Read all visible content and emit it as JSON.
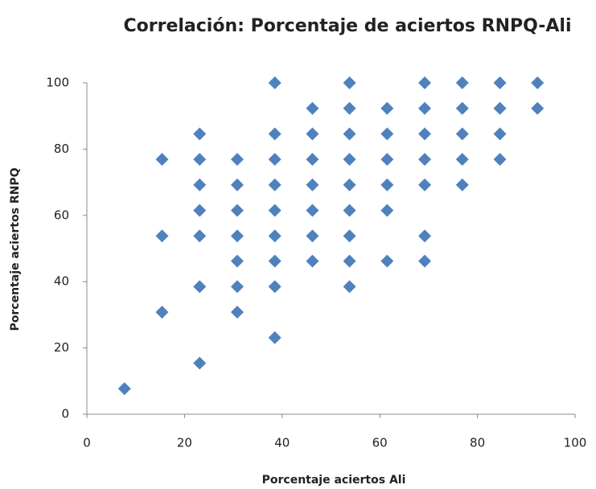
{
  "chart_data": {
    "type": "scatter",
    "title": "Correlación: Porcentaje de aciertos RNPQ-Ali",
    "x_label": "Porcentaje aciertos Ali",
    "y_label": "Porcentaje aciertos RNPQ",
    "xlim": [
      0,
      100
    ],
    "xticks": [
      0,
      20,
      40,
      60,
      80,
      100
    ],
    "ylim": [
      0,
      100
    ],
    "yticks": [
      0,
      20,
      40,
      60,
      80,
      100
    ],
    "grid": false,
    "series": [
      {
        "color": "#4f81bd",
        "x": [
          7.7,
          15.4,
          15.4,
          15.4,
          23.1,
          23.1,
          23.1,
          23.1,
          23.1,
          23.1,
          23.1,
          30.8,
          30.8,
          30.8,
          30.8,
          30.8,
          30.8,
          30.8,
          38.5,
          38.5,
          38.5,
          38.5,
          38.5,
          38.5,
          38.5,
          38.5,
          38.5,
          46.2,
          46.2,
          46.2,
          46.2,
          46.2,
          46.2,
          46.2,
          53.8,
          53.8,
          53.8,
          53.8,
          53.8,
          53.8,
          53.8,
          53.8,
          53.8,
          61.5,
          61.5,
          61.5,
          61.5,
          61.5,
          61.5,
          69.2,
          69.2,
          69.2,
          69.2,
          69.2,
          69.2,
          69.2,
          76.9,
          76.9,
          76.9,
          76.9,
          76.9,
          84.6,
          84.6,
          84.6,
          84.6,
          92.3,
          92.3
        ],
        "values": [
          7.7,
          76.9,
          53.8,
          30.8,
          84.6,
          76.9,
          69.2,
          61.5,
          53.8,
          38.5,
          15.4,
          76.9,
          69.2,
          61.5,
          53.8,
          46.2,
          38.5,
          30.8,
          100,
          84.6,
          76.9,
          69.2,
          61.5,
          53.8,
          46.2,
          38.5,
          23.1,
          92.3,
          84.6,
          76.9,
          69.2,
          61.5,
          53.8,
          46.2,
          100,
          92.3,
          84.6,
          76.9,
          69.2,
          61.5,
          53.8,
          46.2,
          38.5,
          92.3,
          84.6,
          76.9,
          69.2,
          61.5,
          46.2,
          100,
          92.3,
          84.6,
          76.9,
          69.2,
          53.8,
          46.2,
          100,
          92.3,
          84.6,
          76.9,
          69.2,
          100,
          92.3,
          84.6,
          76.9,
          100,
          92.3
        ]
      }
    ]
  }
}
